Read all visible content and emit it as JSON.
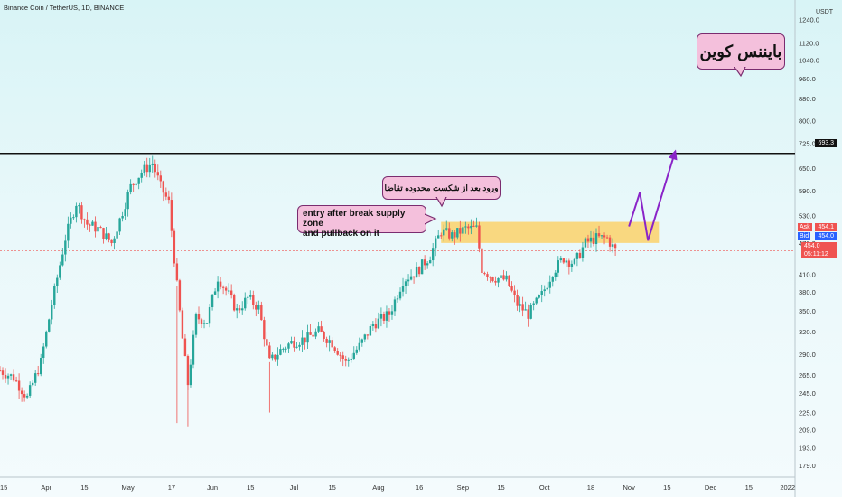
{
  "symbol_title": "Binance Coin / TetherUS, 1D, BINANCE",
  "currency": "USDT",
  "price_axis": [
    "1240.0",
    "1120.0",
    "1040.0",
    "960.0",
    "880.0",
    "800.0",
    "725.0",
    "650.0",
    "590.0",
    "530.0",
    "470.0",
    "410.0",
    "380.0",
    "350.0",
    "320.0",
    "290.0",
    "265.0",
    "245.0",
    "225.0",
    "209.0",
    "193.0",
    "179.0"
  ],
  "time_axis": [
    "15",
    "Apr",
    "15",
    "May",
    "17",
    "Jun",
    "15",
    "Jul",
    "15",
    "Aug",
    "16",
    "Sep",
    "15",
    "Oct",
    "18",
    "Nov",
    "15",
    "Dec",
    "15",
    "2022"
  ],
  "price_tags": {
    "level": "693.3",
    "ask_label": "Ask",
    "ask": "454.1",
    "bid_label": "Bid",
    "bid": "454.0",
    "last": "454.0",
    "countdown": "05:11:12"
  },
  "annotations": {
    "persian_title": "بایننس کوین",
    "entry_fa": "ورود بعد از شکست محدوده تقاضا",
    "entry_en_line1": "entry after break supply zone",
    "entry_en_line2": "and pullback on it"
  },
  "colors": {
    "up": "#26a69a",
    "down": "#ef5350",
    "zone": "#fcd26a",
    "projection": "#8a24c8",
    "callout_bg": "#f4c0dc",
    "callout_border": "#7a2c6f"
  },
  "chart_data": {
    "type": "candlestick",
    "title": "Binance Coin / TetherUS, 1D, BINANCE",
    "y_unit": "USDT",
    "y_scale": "log",
    "ylim": [
      170,
      1350
    ],
    "y_ticks": [
      1240,
      1120,
      1040,
      960,
      880,
      800,
      725,
      650,
      590,
      530,
      470,
      410,
      380,
      350,
      320,
      290,
      265,
      245,
      225,
      209,
      193,
      179
    ],
    "x_start": "2021-03-15",
    "x_end": "2022-01-01",
    "x_ticks": [
      "15",
      "Apr",
      "15",
      "May",
      "17",
      "Jun",
      "15",
      "Jul",
      "15",
      "Aug",
      "16",
      "Sep",
      "15",
      "Oct",
      "18",
      "Nov",
      "15",
      "Dec",
      "15",
      "2022"
    ],
    "close_path": [
      [
        "2021-03-15",
        270
      ],
      [
        "2021-03-20",
        262
      ],
      [
        "2021-03-25",
        240
      ],
      [
        "2021-03-30",
        280
      ],
      [
        "2021-04-03",
        360
      ],
      [
        "2021-04-08",
        480
      ],
      [
        "2021-04-12",
        560
      ],
      [
        "2021-04-16",
        510
      ],
      [
        "2021-04-20",
        500
      ],
      [
        "2021-04-25",
        470
      ],
      [
        "2021-04-28",
        520
      ],
      [
        "2021-05-02",
        600
      ],
      [
        "2021-05-06",
        640
      ],
      [
        "2021-05-10",
        665
      ],
      [
        "2021-05-13",
        600
      ],
      [
        "2021-05-16",
        560
      ],
      [
        "2021-05-19",
        390
      ],
      [
        "2021-05-21",
        310
      ],
      [
        "2021-05-23",
        255
      ],
      [
        "2021-05-26",
        340
      ],
      [
        "2021-05-30",
        335
      ],
      [
        "2021-06-03",
        405
      ],
      [
        "2021-06-07",
        375
      ],
      [
        "2021-06-10",
        350
      ],
      [
        "2021-06-14",
        370
      ],
      [
        "2021-06-18",
        355
      ],
      [
        "2021-06-22",
        280
      ],
      [
        "2021-06-26",
        295
      ],
      [
        "2021-06-30",
        305
      ],
      [
        "2021-07-05",
        310
      ],
      [
        "2021-07-10",
        320
      ],
      [
        "2021-07-15",
        305
      ],
      [
        "2021-07-20",
        280
      ],
      [
        "2021-07-25",
        300
      ],
      [
        "2021-07-30",
        330
      ],
      [
        "2021-08-05",
        345
      ],
      [
        "2021-08-10",
        400
      ],
      [
        "2021-08-15",
        415
      ],
      [
        "2021-08-20",
        445
      ],
      [
        "2021-08-24",
        495
      ],
      [
        "2021-08-28",
        485
      ],
      [
        "2021-09-02",
        500
      ],
      [
        "2021-09-06",
        500
      ],
      [
        "2021-09-08",
        420
      ],
      [
        "2021-09-12",
        405
      ],
      [
        "2021-09-17",
        400
      ],
      [
        "2021-09-21",
        360
      ],
      [
        "2021-09-25",
        345
      ],
      [
        "2021-09-30",
        375
      ],
      [
        "2021-10-04",
        415
      ],
      [
        "2021-10-08",
        440
      ],
      [
        "2021-10-12",
        430
      ],
      [
        "2021-10-16",
        470
      ],
      [
        "2021-10-20",
        480
      ],
      [
        "2021-10-24",
        480
      ],
      [
        "2021-10-27",
        454
      ]
    ],
    "supply_zone": {
      "from": "2021-08-24",
      "to": "2021-11-12",
      "low": 470,
      "high": 515
    },
    "resistance_level": 693.3,
    "current_price": 454.0,
    "projection": [
      [
        "2021-11-01",
        505
      ],
      [
        "2021-11-05",
        585
      ],
      [
        "2021-11-08",
        475
      ],
      [
        "2021-11-14",
        600
      ],
      [
        "2021-11-18",
        700
      ]
    ]
  }
}
